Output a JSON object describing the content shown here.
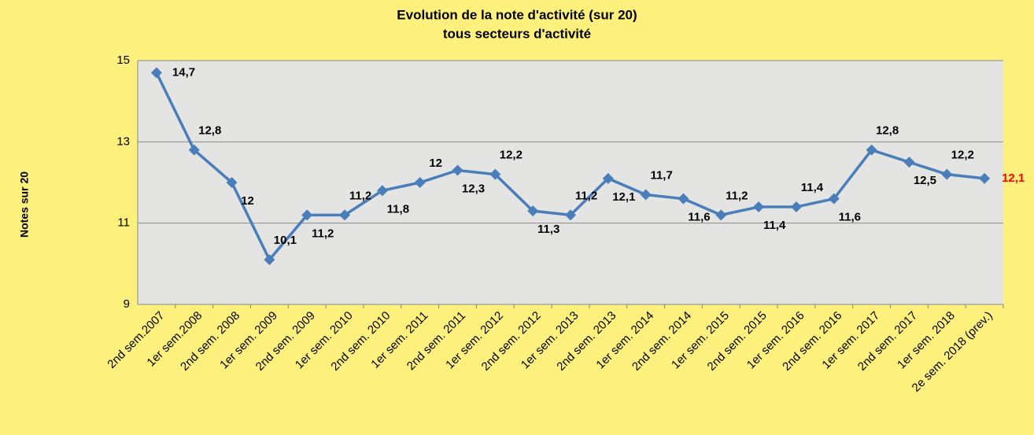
{
  "chart_data": {
    "type": "line",
    "title": [
      "Evolution de la note d'activité (sur 20)",
      "tous secteurs d'activité"
    ],
    "y_label": "Notes sur 20",
    "categories": [
      "2nd sem.2007",
      "1er sem.2008",
      "2nd sem. 2008",
      "1er sem. 2009",
      "2nd sem. 2009",
      "1er sem. 2010",
      "2nd sem. 2010",
      "1er sem. 2011",
      "2nd sem. 2011",
      "1er sem. 2012",
      "2nd sem. 2012",
      "1er sem. 2013",
      "2nd sem. 2013",
      "1er sem. 2014",
      "2nd sem. 2014",
      "1er sem. 2015",
      "2nd sem. 2015",
      "1er sem. 2016",
      "2nd sem. 2016",
      "1er sem. 2017",
      "2nd sem. 2017",
      "1er sem. 2018",
      "2e sem. 2018 (prev.)"
    ],
    "series": [
      {
        "name": "Note d'activité",
        "color": "#4a7ebb",
        "values": [
          14.7,
          12.8,
          12,
          10.1,
          11.2,
          11.2,
          11.8,
          12,
          12.3,
          12.2,
          11.3,
          11.2,
          12.1,
          11.7,
          11.6,
          11.2,
          11.4,
          11.4,
          11.6,
          12.8,
          12.5,
          12.2,
          12.1
        ],
        "value_labels": [
          "14,7",
          "12,8",
          "12",
          "10,1",
          "11,2",
          "11,2",
          "11,8",
          "12",
          "12,3",
          "12,2",
          "11,3",
          "11,2",
          "12,1",
          "11,7",
          "11,6",
          "11,2",
          "11,4",
          "11,4",
          "11,6",
          "12,8",
          "12,5",
          "12,2",
          "12,1"
        ]
      }
    ],
    "last_label_color": "#ff0000",
    "ylim": [
      9,
      15
    ],
    "yticks": [
      9,
      11,
      13,
      15
    ],
    "grid": true
  }
}
